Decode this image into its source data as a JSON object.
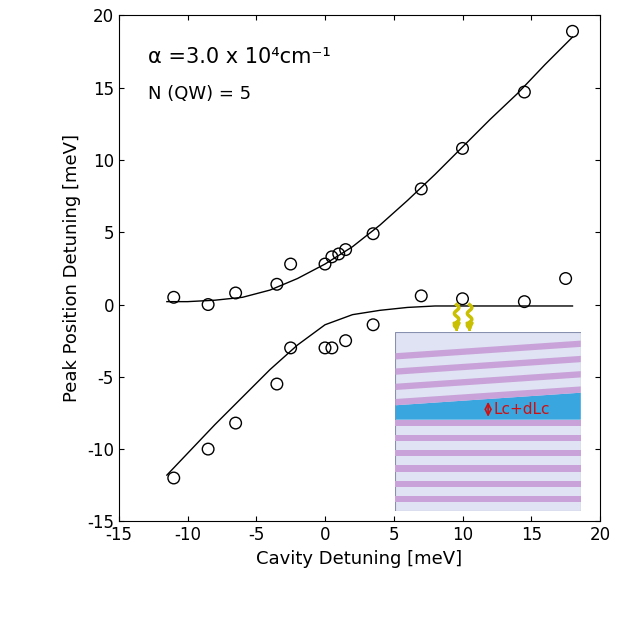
{
  "chart_data": {
    "type": "scatter",
    "x_label": "Cavity Detuning [meV]",
    "y_label": "Peak Position Detuning [meV]",
    "annotations": [
      "α =3.0 x 10⁴cm⁻¹",
      "N (QW) = 5"
    ],
    "inset_label": "Lc+dLc",
    "xlim": [
      -15,
      20
    ],
    "xticks": [
      -15,
      -10,
      -5,
      0,
      5,
      10,
      15,
      20
    ],
    "ylim": [
      -15,
      20
    ],
    "yticks": [
      -15,
      -10,
      -5,
      0,
      5,
      10,
      15,
      20
    ],
    "series": [
      {
        "type": "scatter",
        "marker": "o",
        "color": "#000000",
        "x": [
          -11,
          -8.5,
          -6.5,
          -3.5,
          -2.5,
          0,
          0.5,
          1,
          1.5,
          3.5,
          7,
          10,
          14.5,
          18
        ],
        "values": [
          0.5,
          0,
          0.8,
          1.4,
          2.8,
          2.8,
          3.3,
          3.5,
          3.8,
          4.9,
          8,
          10.8,
          14.7,
          18.9
        ]
      },
      {
        "type": "scatter",
        "marker": "o",
        "color": "#000000",
        "x": [
          -11,
          -8.5,
          -6.5,
          -3.5,
          -2.5,
          0,
          0.5,
          1.5,
          3.5,
          7,
          10,
          14.5,
          17.5
        ],
        "values": [
          -12,
          -10,
          -8.2,
          -5.5,
          -3,
          -3,
          -3,
          -2.5,
          -1.4,
          0.6,
          0.4,
          0.2,
          1.8
        ]
      },
      {
        "type": "line",
        "line_style": "solid",
        "color": "#000000",
        "x": [
          -11.5,
          -10,
          -8,
          -6,
          -4,
          -2,
          0,
          2,
          4,
          6,
          8,
          10,
          12,
          14,
          16,
          18
        ],
        "values": [
          0.2,
          0.2,
          0.3,
          0.5,
          1.0,
          1.8,
          2.8,
          4.0,
          5.5,
          7.2,
          9.0,
          10.9,
          12.8,
          14.6,
          16.6,
          18.5
        ]
      },
      {
        "type": "line",
        "line_style": "solid",
        "color": "#000000",
        "x": [
          -11.5,
          -10,
          -8,
          -6,
          -4,
          -2,
          0,
          2,
          4,
          6,
          8,
          10,
          12,
          14,
          16,
          18
        ],
        "values": [
          -11.8,
          -10.3,
          -8.3,
          -6.4,
          -4.5,
          -2.8,
          -1.4,
          -0.7,
          -0.4,
          -0.2,
          -0.1,
          -0.1,
          -0.1,
          -0.1,
          -0.1,
          -0.1
        ]
      }
    ]
  }
}
